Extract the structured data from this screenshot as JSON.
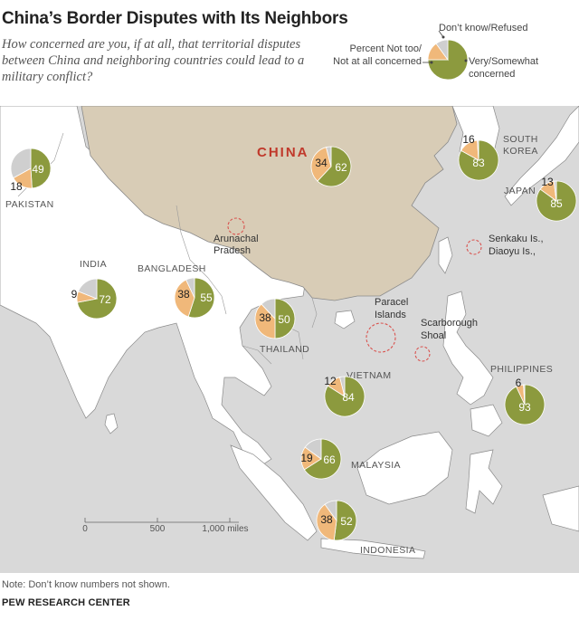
{
  "header": {
    "title": "China’s Border Disputes with Its Neighbors",
    "question": "How concerned are you, if at all, that territorial disputes between China and neighboring countries could lead to a military conflict?"
  },
  "legend": {
    "dont_know": "Don’t know/Refused",
    "not_concerned_line1": "Percent Not too/",
    "not_concerned_line2": "Not at all concerned",
    "concerned_line1": "Very/Somewhat",
    "concerned_line2": "concerned"
  },
  "colors": {
    "concerned": "#8c9a3e",
    "not_concerned": "#f0b87a",
    "dont_know": "#cfcfcf",
    "land": "#ffffff",
    "china_land": "#d8ccb6",
    "sea": "#d9d9d9",
    "border": "#8a8a8a",
    "china_label": "#c0392b",
    "dispute_circle": "#d9534f"
  },
  "countries": [
    {
      "name": "PAKISTAN",
      "concerned": 49,
      "not_concerned": 18
    },
    {
      "name": "INDIA",
      "concerned": 72,
      "not_concerned": 9
    },
    {
      "name": "BANGLADESH",
      "concerned": 55,
      "not_concerned": 38
    },
    {
      "name": "CHINA",
      "concerned": 62,
      "not_concerned": 34
    },
    {
      "name": "THAILAND",
      "concerned": 50,
      "not_concerned": 38
    },
    {
      "name": "VIETNAM",
      "concerned": 84,
      "not_concerned": 12
    },
    {
      "name": "MALAYSIA",
      "concerned": 66,
      "not_concerned": 19
    },
    {
      "name": "INDONESIA",
      "concerned": 52,
      "not_concerned": 38
    },
    {
      "name": "PHILIPPINES",
      "concerned": 93,
      "not_concerned": 6
    },
    {
      "name": "JAPAN",
      "concerned": 85,
      "not_concerned": 13
    },
    {
      "name": "SOUTH KOREA",
      "concerned": 83,
      "not_concerned": 16
    }
  ],
  "labels": {
    "south_korea_line1": "SOUTH",
    "south_korea_line2": "KOREA"
  },
  "disputes": [
    {
      "name_line1": "Arunachal",
      "name_line2": "Pradesh"
    },
    {
      "name_line1": "Senkaku Is.,",
      "name_line2": "Diaoyu Is.,"
    },
    {
      "name_line1": "Paracel",
      "name_line2": "Islands"
    },
    {
      "name_line1": "Scarborough",
      "name_line2": "Shoal"
    }
  ],
  "scale": {
    "ticks": [
      "0",
      "500",
      "1,000 miles"
    ]
  },
  "footer": {
    "note": "Note: Don’t know numbers not shown.",
    "source": "PEW RESEARCH CENTER"
  }
}
